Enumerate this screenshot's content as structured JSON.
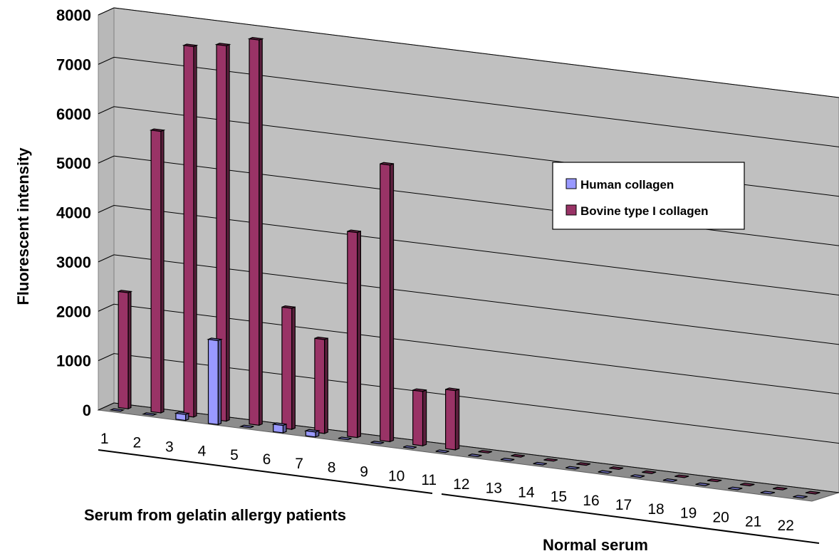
{
  "chart_data": {
    "type": "bar",
    "ylabel": "Fluorescent intensity",
    "ylim": [
      0,
      8000
    ],
    "yticks": [
      "0",
      "1000",
      "2000",
      "3000",
      "4000",
      "5000",
      "6000",
      "7000",
      "8000"
    ],
    "categories": [
      "1",
      "2",
      "3",
      "4",
      "5",
      "6",
      "7",
      "8",
      "9",
      "10",
      "11",
      "12",
      "13",
      "14",
      "15",
      "16",
      "17",
      "18",
      "19",
      "20",
      "21",
      "22"
    ],
    "group_labels": [
      "Serum from gelatin allergy patients",
      "Normal serum"
    ],
    "series": [
      {
        "name": "Human collagen",
        "color": "#9999ff",
        "values": [
          20,
          20,
          120,
          1700,
          20,
          150,
          100,
          30,
          30,
          20,
          20,
          20,
          20,
          20,
          20,
          20,
          20,
          20,
          20,
          20,
          20,
          20
        ]
      },
      {
        "name": "Bovine type I collagen",
        "color": "#993366",
        "values": [
          2350,
          5700,
          7500,
          7600,
          7800,
          2450,
          1900,
          4150,
          5600,
          1100,
          1200,
          20,
          20,
          20,
          20,
          20,
          20,
          20,
          20,
          20,
          20,
          20
        ]
      }
    ],
    "grid": true,
    "legend_position": "right"
  }
}
